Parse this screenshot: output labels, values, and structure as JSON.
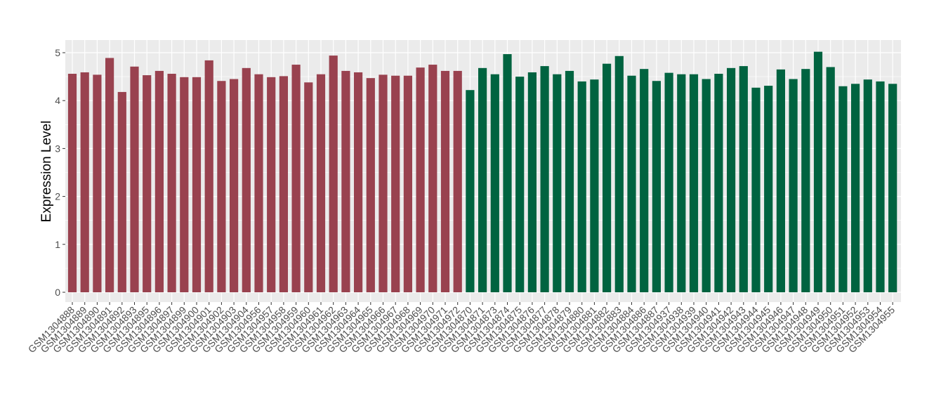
{
  "chart_data": {
    "type": "bar",
    "title": "",
    "xlabel": "",
    "ylabel": "Expression Level",
    "ylim": [
      0,
      5.2
    ],
    "yticks": [
      0,
      1,
      2,
      3,
      4,
      5
    ],
    "grid": true,
    "legend": "none",
    "colors": {
      "group1": "#99424F",
      "group2": "#006340",
      "panel": "#EBEBEB",
      "grid": "#FFFFFF"
    },
    "categories": [
      "GSM1304888",
      "GSM1304889",
      "GSM1304890",
      "GSM1304891",
      "GSM1304892",
      "GSM1304893",
      "GSM1304895",
      "GSM1304896",
      "GSM1304897",
      "GSM1304899",
      "GSM1304900",
      "GSM1304901",
      "GSM1304902",
      "GSM1304903",
      "GSM1304904",
      "GSM1304956",
      "GSM1304957",
      "GSM1304958",
      "GSM1304959",
      "GSM1304960",
      "GSM1304961",
      "GSM1304962",
      "GSM1304963",
      "GSM1304964",
      "GSM1304965",
      "GSM1304966",
      "GSM1304967",
      "GSM1304968",
      "GSM1304969",
      "GSM1304970",
      "GSM1304971",
      "GSM1304972",
      "GSM1304870",
      "GSM1304871",
      "GSM1304873",
      "GSM1304874",
      "GSM1304875",
      "GSM1304876",
      "GSM1304877",
      "GSM1304878",
      "GSM1304879",
      "GSM1304880",
      "GSM1304881",
      "GSM1304882",
      "GSM1304883",
      "GSM1304884",
      "GSM1304886",
      "GSM1304887",
      "GSM1304937",
      "GSM1304938",
      "GSM1304939",
      "GSM1304940",
      "GSM1304941",
      "GSM1304942",
      "GSM1304943",
      "GSM1304944",
      "GSM1304945",
      "GSM1304946",
      "GSM1304947",
      "GSM1304948",
      "GSM1304949",
      "GSM1304950",
      "GSM1304951",
      "GSM1304952",
      "GSM1304953",
      "GSM1304954",
      "GSM1304955"
    ],
    "values": [
      4.56,
      4.59,
      4.54,
      4.89,
      4.18,
      4.71,
      4.53,
      4.62,
      4.56,
      4.49,
      4.49,
      4.84,
      4.41,
      4.45,
      4.68,
      4.55,
      4.49,
      4.51,
      4.75,
      4.38,
      4.55,
      4.94,
      4.62,
      4.59,
      4.47,
      4.54,
      4.52,
      4.52,
      4.69,
      4.75,
      4.62,
      4.62,
      4.22,
      4.68,
      4.55,
      4.97,
      4.5,
      4.59,
      4.72,
      4.55,
      4.62,
      4.4,
      4.44,
      4.77,
      4.93,
      4.52,
      4.66,
      4.41,
      4.58,
      4.55,
      4.55,
      4.45,
      4.56,
      4.68,
      4.72,
      4.27,
      4.31,
      4.65,
      4.45,
      4.66,
      5.02,
      4.7,
      4.3,
      4.35,
      4.44,
      4.4,
      4.35
    ],
    "groups": [
      1,
      1,
      1,
      1,
      1,
      1,
      1,
      1,
      1,
      1,
      1,
      1,
      1,
      1,
      1,
      1,
      1,
      1,
      1,
      1,
      1,
      1,
      1,
      1,
      1,
      1,
      1,
      1,
      1,
      1,
      1,
      1,
      2,
      2,
      2,
      2,
      2,
      2,
      2,
      2,
      2,
      2,
      2,
      2,
      2,
      2,
      2,
      2,
      2,
      2,
      2,
      2,
      2,
      2,
      2,
      2,
      2,
      2,
      2,
      2,
      2,
      2,
      2,
      2,
      2,
      2,
      2
    ]
  }
}
